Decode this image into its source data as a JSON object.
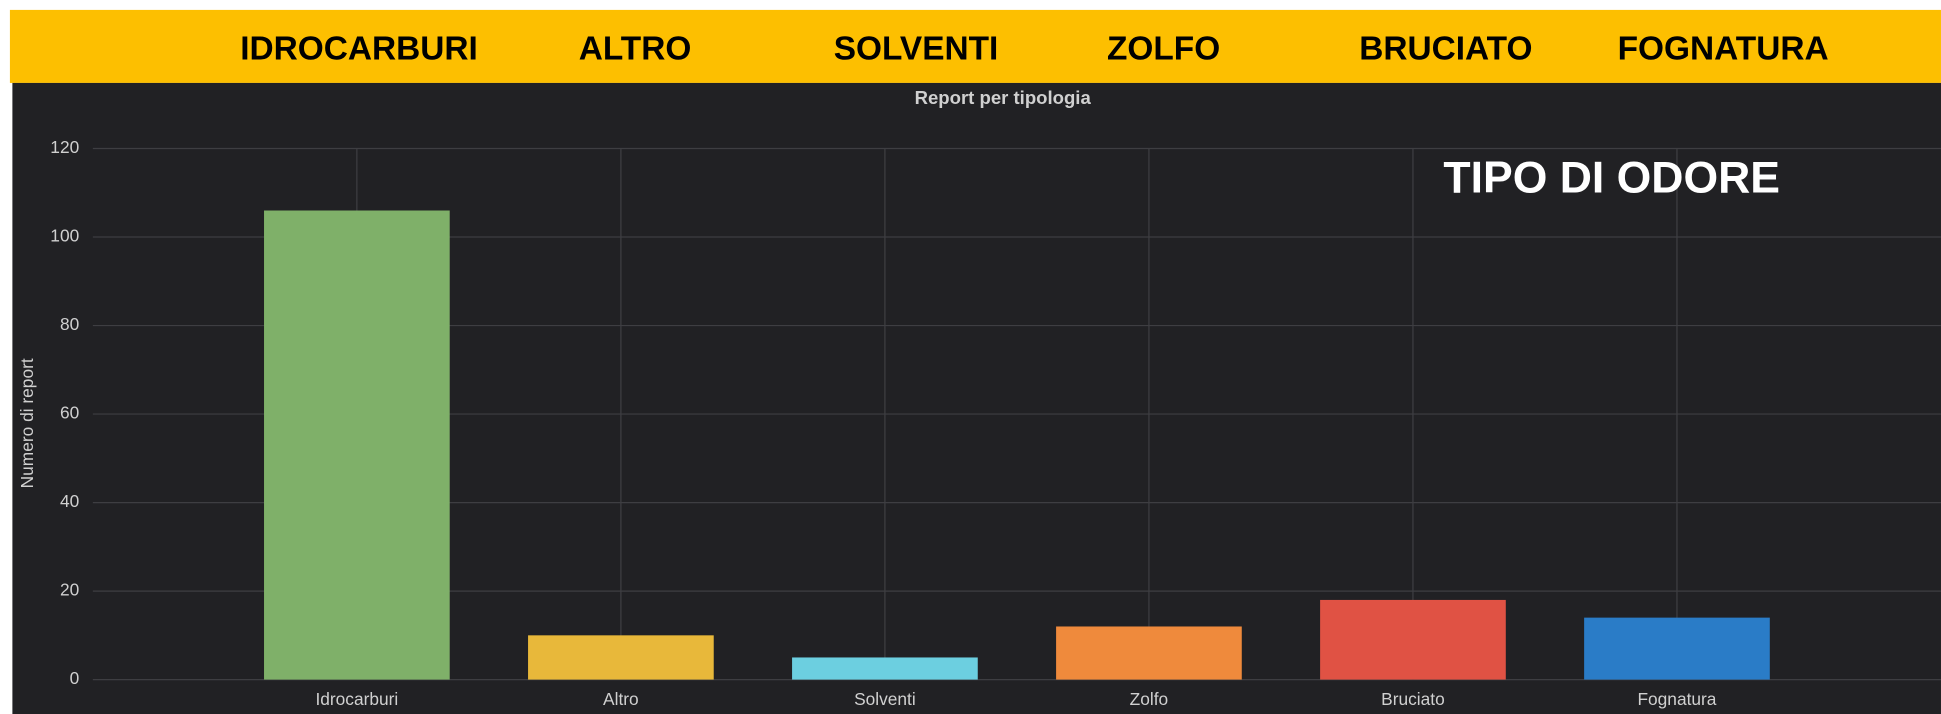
{
  "banner": {
    "labels": [
      "IDROCARBURI",
      "ALTRO",
      "SOLVENTI",
      "ZOLFO",
      "BRUCIATO",
      "FOGNATURA"
    ]
  },
  "overlay": "TIPO DI ODORE",
  "chart_data": {
    "type": "bar",
    "title": "Report per tipologia",
    "y_label": "Numero di report",
    "categories": [
      "Idrocarburi",
      "Altro",
      "Solventi",
      "Zolfo",
      "Bruciato",
      "Fognatura"
    ],
    "values": [
      106,
      10,
      5,
      12,
      18,
      14
    ],
    "colors": [
      "#7fb069",
      "#e8b83a",
      "#6ccfe0",
      "#ef8a3c",
      "#e05244",
      "#2a7cc7"
    ],
    "ylim": [
      0,
      120
    ],
    "yticks": [
      0,
      20,
      40,
      60,
      80,
      100,
      120
    ],
    "grid": true
  }
}
